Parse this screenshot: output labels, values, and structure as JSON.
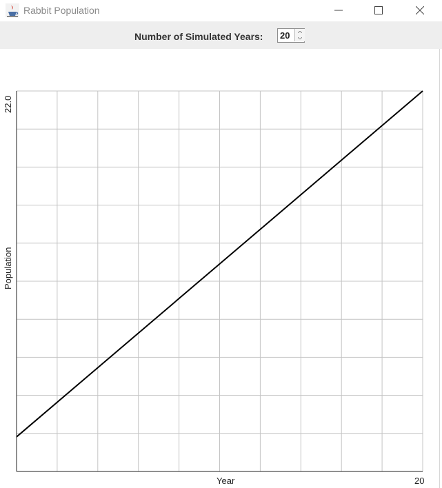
{
  "window": {
    "title": "Rabbit Population",
    "icon": "java-cup-icon"
  },
  "controls": {
    "years_label": "Number of Simulated Years:",
    "years_value": "20"
  },
  "chart_data": {
    "type": "line",
    "xlabel": "Year",
    "ylabel": "Population",
    "x_max_label": "20",
    "y_max_label": "22.0",
    "xlim": [
      0,
      20
    ],
    "ylim": [
      0,
      22
    ],
    "grid": true,
    "series": [
      {
        "x": [
          0,
          20
        ],
        "y": [
          2.0,
          22.0
        ]
      }
    ]
  }
}
